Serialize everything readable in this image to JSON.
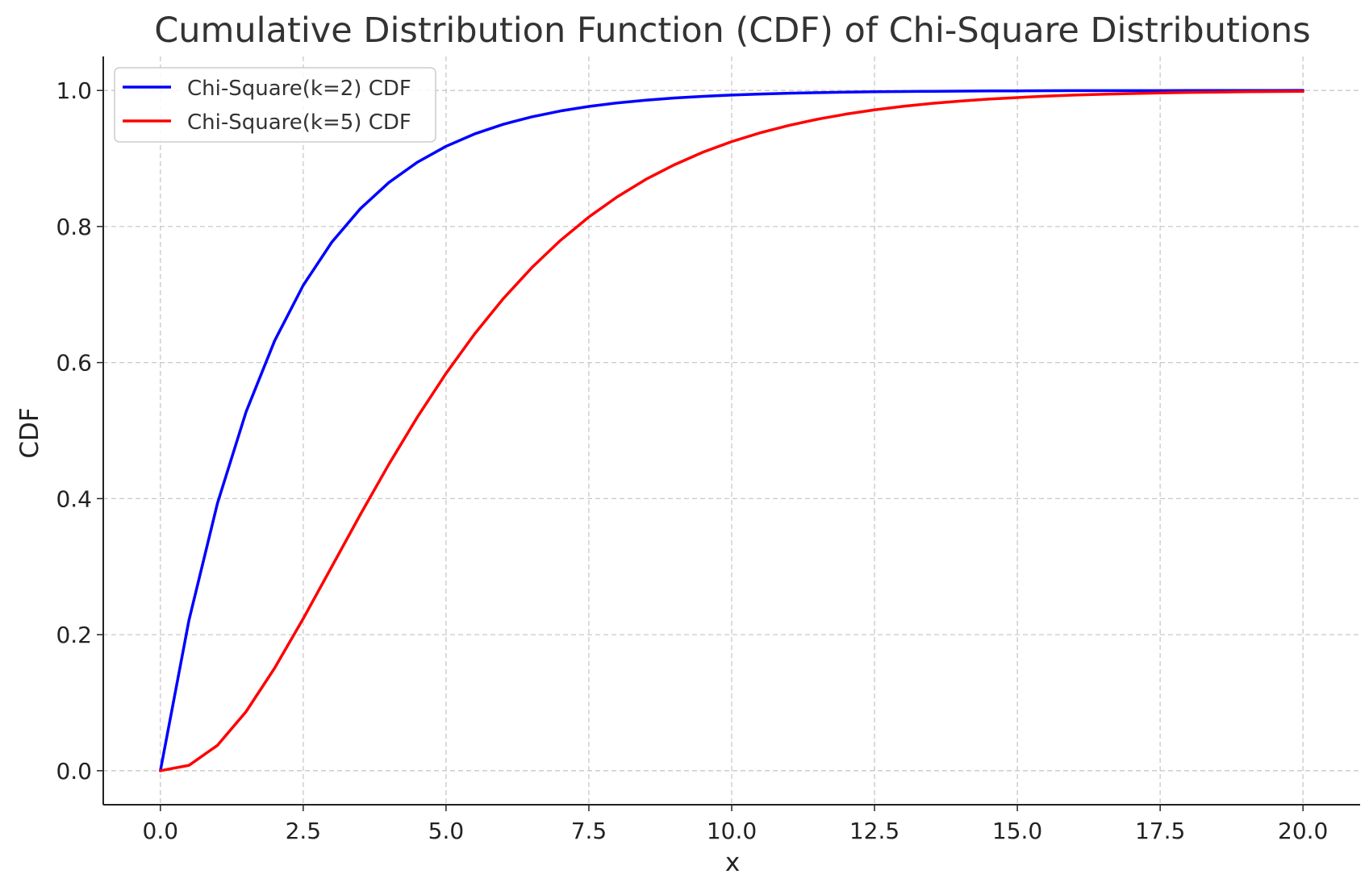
{
  "chart_data": {
    "type": "line",
    "title": "Cumulative Distribution Function (CDF) of Chi-Square Distributions",
    "xlabel": "x",
    "ylabel": "CDF",
    "xlim": [
      -1.0,
      21.0
    ],
    "ylim": [
      -0.05,
      1.05
    ],
    "x_ticks": [
      0.0,
      2.5,
      5.0,
      7.5,
      10.0,
      12.5,
      15.0,
      17.5,
      20.0
    ],
    "x_tick_labels": [
      "0.0",
      "2.5",
      "5.0",
      "7.5",
      "10.0",
      "12.5",
      "15.0",
      "17.5",
      "20.0"
    ],
    "y_ticks": [
      0.0,
      0.2,
      0.4,
      0.6,
      0.8,
      1.0
    ],
    "y_tick_labels": [
      "0.0",
      "0.2",
      "0.4",
      "0.6",
      "0.8",
      "1.0"
    ],
    "grid": true,
    "legend_position": "top-left",
    "x": [
      0,
      0.5,
      1,
      1.5,
      2,
      2.5,
      3,
      3.5,
      4,
      4.5,
      5,
      5.5,
      6,
      6.5,
      7,
      7.5,
      8,
      8.5,
      9,
      9.5,
      10,
      10.5,
      11,
      11.5,
      12,
      12.5,
      13,
      13.5,
      14,
      14.5,
      15,
      15.5,
      16,
      16.5,
      17,
      17.5,
      18,
      18.5,
      19,
      19.5,
      20
    ],
    "series": [
      {
        "name": "Chi-Square(k=2) CDF",
        "color": "#0000ff",
        "values": [
          0.0,
          0.2212,
          0.3935,
          0.5276,
          0.6321,
          0.7135,
          0.7769,
          0.8262,
          0.8647,
          0.8946,
          0.9179,
          0.9361,
          0.9502,
          0.9612,
          0.9698,
          0.9765,
          0.9817,
          0.9857,
          0.9889,
          0.9913,
          0.9933,
          0.9948,
          0.9959,
          0.9968,
          0.9975,
          0.9981,
          0.9985,
          0.9988,
          0.9991,
          0.9993,
          0.9994,
          0.9996,
          0.9997,
          0.9997,
          0.9998,
          0.9998,
          0.9999,
          0.9999,
          0.9999,
          0.9999,
          1.0
        ]
      },
      {
        "name": "Chi-Square(k=5) CDF",
        "color": "#ff0000",
        "values": [
          0.0,
          0.0079,
          0.0374,
          0.0869,
          0.1509,
          0.2235,
          0.3,
          0.3766,
          0.4506,
          0.5201,
          0.5841,
          0.6421,
          0.6938,
          0.7394,
          0.7794,
          0.814,
          0.8438,
          0.8694,
          0.8909,
          0.9094,
          0.9248,
          0.9378,
          0.9486,
          0.9577,
          0.9652,
          0.9715,
          0.9766,
          0.9809,
          0.9844,
          0.9873,
          0.9896,
          0.9916,
          0.9932,
          0.9945,
          0.9955,
          0.9964,
          0.9971,
          0.9976,
          0.9981,
          0.9985,
          0.9988
        ]
      }
    ]
  }
}
